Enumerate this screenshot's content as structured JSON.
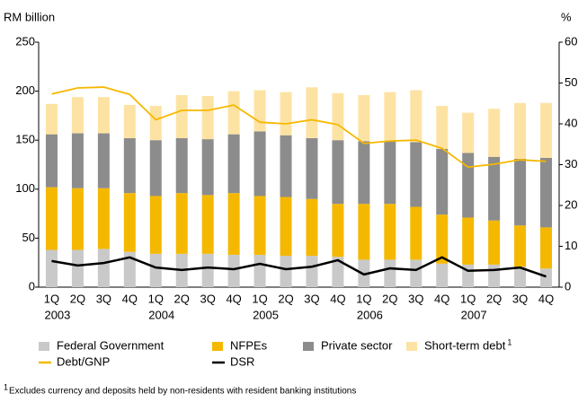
{
  "chart_data": {
    "type": "bar",
    "y_label": "RM billion",
    "y2_label": "%",
    "categories": [
      "1Q",
      "2Q",
      "3Q",
      "4Q",
      "1Q",
      "2Q",
      "3Q",
      "4Q",
      "1Q",
      "2Q",
      "3Q",
      "4Q",
      "1Q",
      "2Q",
      "3Q",
      "4Q",
      "1Q",
      "2Q",
      "3Q",
      "4Q"
    ],
    "year_labels": [
      "2003",
      null,
      null,
      null,
      "2004",
      null,
      null,
      null,
      "2005",
      null,
      null,
      null,
      "2006",
      null,
      null,
      null,
      "2007",
      null,
      null,
      null
    ],
    "stacked": true,
    "series": [
      {
        "name": "Federal Government",
        "color": "#c9c9c9",
        "values": [
          38,
          38,
          39,
          36,
          34,
          34,
          34,
          33,
          33,
          32,
          32,
          31,
          28,
          28,
          28,
          24,
          23,
          23,
          21,
          19
        ]
      },
      {
        "name": "NFPEs",
        "color": "#f5b800",
        "values": [
          64,
          63,
          62,
          60,
          59,
          62,
          60,
          63,
          60,
          60,
          58,
          54,
          57,
          57,
          54,
          50,
          48,
          45,
          42,
          42
        ]
      },
      {
        "name": "Private sector",
        "color": "#8c8c8c",
        "values": [
          54,
          56,
          56,
          56,
          57,
          56,
          57,
          60,
          66,
          63,
          62,
          65,
          64,
          64,
          66,
          67,
          66,
          65,
          68,
          71
        ]
      },
      {
        "name": "Short-term debt",
        "note": "1",
        "color": "#fde3a3",
        "values": [
          31,
          37,
          37,
          34,
          35,
          44,
          44,
          44,
          42,
          44,
          52,
          48,
          47,
          50,
          53,
          44,
          41,
          49,
          57,
          56
        ]
      },
      {
        "name": "Debt/GNP",
        "type": "line",
        "axis": "y2",
        "color": "#f5b800",
        "values": [
          47.3,
          48.8,
          49,
          47.2,
          41,
          43.3,
          43.3,
          44.6,
          40.4,
          40,
          41,
          39.8,
          35.2,
          35.8,
          36,
          34,
          29.4,
          30.1,
          31.2,
          30.8
        ]
      },
      {
        "name": "DSR",
        "type": "line",
        "axis": "y2",
        "color": "#000000",
        "values": [
          6.4,
          5.3,
          5.9,
          7.3,
          4.8,
          4.2,
          4.8,
          4.4,
          5.7,
          4.4,
          5,
          6.6,
          3.1,
          4.6,
          4.2,
          7.3,
          4,
          4.2,
          4.8,
          2.6
        ]
      }
    ],
    "ylim": [
      0,
      250
    ],
    "yticks": [
      0,
      50,
      100,
      150,
      200,
      250
    ],
    "y2lim": [
      0,
      60
    ],
    "y2ticks": [
      0,
      10,
      20,
      30,
      40,
      50,
      60
    ],
    "grid": false,
    "footnote": {
      "marker": "1",
      "text": "Excludes currency and deposits held by non-residents with resident banking institutions"
    }
  }
}
